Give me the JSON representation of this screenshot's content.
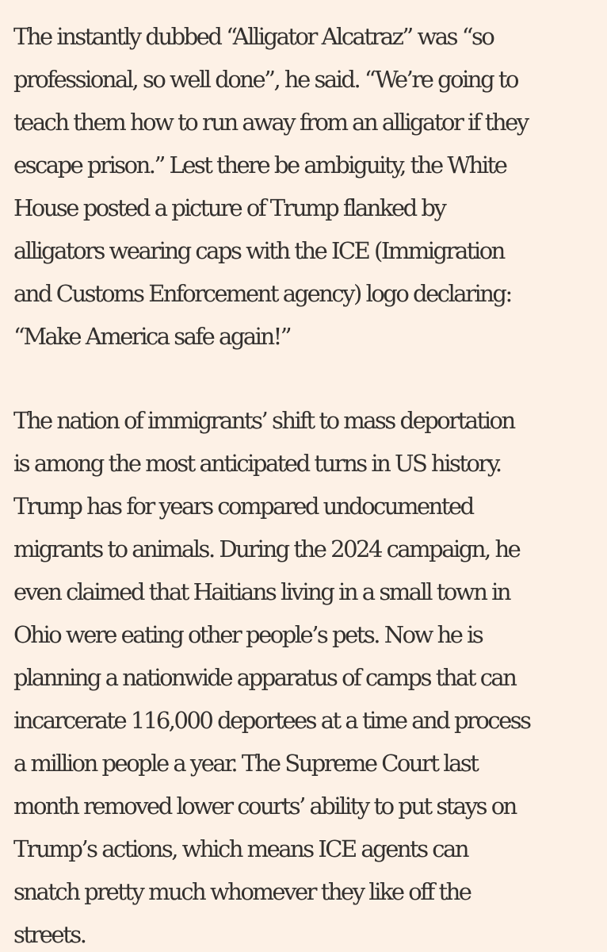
{
  "article": {
    "paragraphs": [
      {
        "lines": [
          "The instantly dubbed “Alligator Alcatraz” was “so",
          "professional, so well done”, he said. “We’re going to",
          "teach them how to run away from an alligator if they",
          "escape prison.” Lest there be ambiguity, the White",
          "House posted a picture of Trump flanked by",
          "alligators wearing caps with the ICE (Immigration",
          "and Customs Enforcement agency) logo declaring:",
          "“Make America safe again!”"
        ]
      },
      {
        "lines": [
          "The nation of immigrants’ shift to mass deportation",
          "is among the most anticipated turns in US history.",
          "Trump has for years compared undocumented",
          "migrants to animals. During the 2024 campaign, he",
          "even claimed that Haitians living in a small town in",
          "Ohio were eating other people’s pets. Now he is",
          "planning a nationwide apparatus of camps that can",
          "incarcerate 116,000 deportees at a time and process",
          "a million people a year. The Supreme Court last",
          "month removed lower courts’ ability to put stays on",
          "Trump’s actions, which means ICE agents can",
          "snatch pretty much whomever they like off the",
          "streets."
        ]
      }
    ]
  }
}
